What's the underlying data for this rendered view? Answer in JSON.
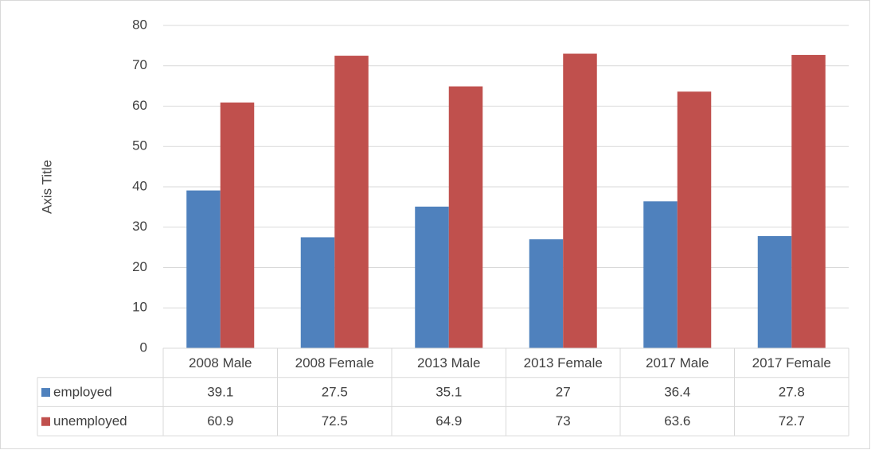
{
  "chart_data": {
    "type": "bar",
    "y_label": "Axis Title",
    "categories": [
      "2008 Male",
      "2008 Female",
      "2013 Male",
      "2013 Female",
      "2017 Male",
      "2017 Female"
    ],
    "series": [
      {
        "name": "employed",
        "color": "#4f81bd",
        "values": [
          39.1,
          27.5,
          35.1,
          27,
          36.4,
          27.8
        ]
      },
      {
        "name": "unemployed",
        "color": "#c0504d",
        "values": [
          60.9,
          72.5,
          64.9,
          73,
          63.6,
          72.7
        ]
      }
    ],
    "ylim": [
      0,
      80
    ],
    "yticks": [
      0,
      10,
      20,
      30,
      40,
      50,
      60,
      70,
      80
    ],
    "grid": true,
    "data_table": true
  }
}
